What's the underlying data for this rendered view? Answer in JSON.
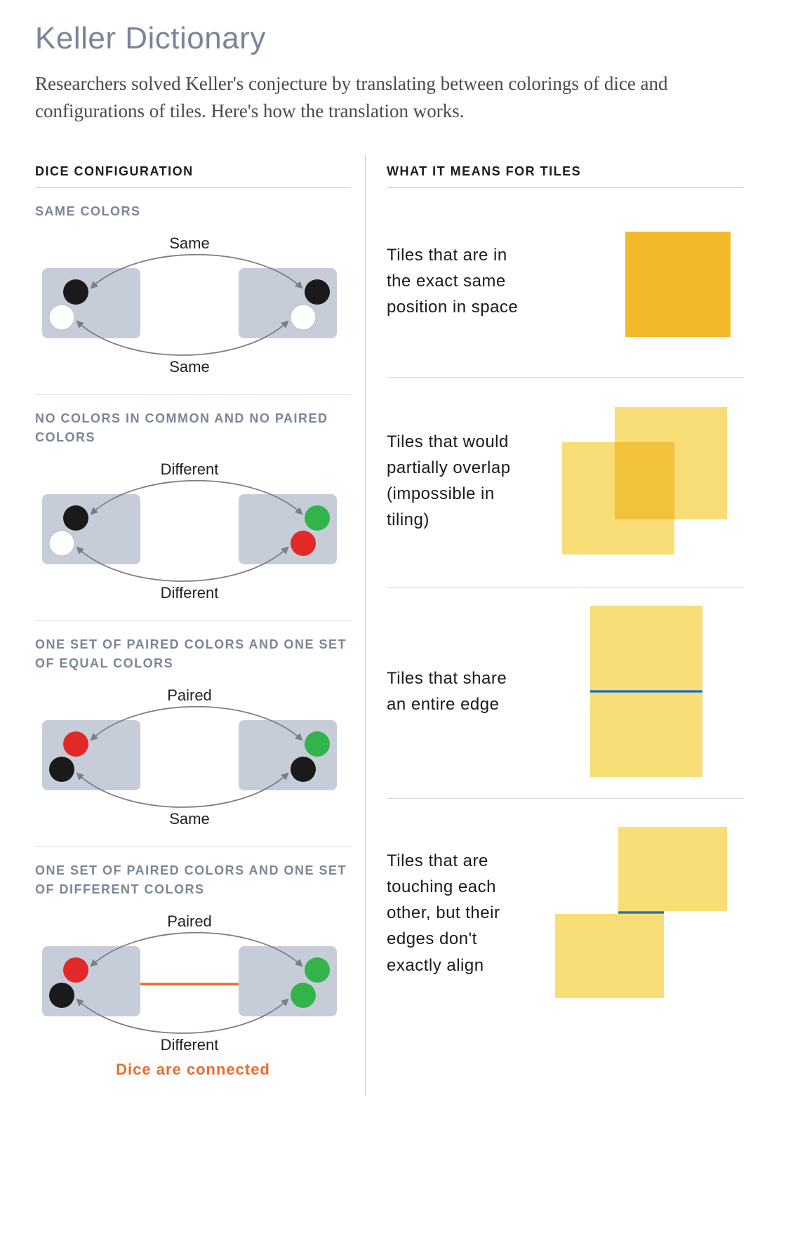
{
  "title": "Keller Dictionary",
  "intro": "Researchers solved Keller's conjecture by translating between colorings of dice and configurations of tiles. Here's how the translation works.",
  "headers": {
    "left": "DICE CONFIGURATION",
    "right": "WHAT IT MEANS FOR TILES"
  },
  "colors": {
    "dice_bg": "#c6cdd9",
    "black": "#1a1a1a",
    "white": "#ffffff",
    "green": "#32b44a",
    "red": "#e32828",
    "arrow": "#7a7f87",
    "tile_solid": "#f2b92a",
    "tile_trans": "#f9dd76",
    "tile_overlap": "#f2c23a",
    "edge_blue": "#2a6fa8",
    "orange": "#ee6a28",
    "label_gray": "#7a8599"
  },
  "rows": [
    {
      "label": "SAME COLORS",
      "top_rel": "Same",
      "bottom_rel": "Same",
      "left_dots": [
        "black",
        "white"
      ],
      "right_dots": [
        "black",
        "white"
      ],
      "connected": false,
      "tile_text": "Tiles that are in the exact same position in space",
      "tile_kind": "same"
    },
    {
      "label": "NO COLORS IN COMMON AND NO PAIRED COLORS",
      "top_rel": "Different",
      "bottom_rel": "Different",
      "left_dots": [
        "black",
        "white"
      ],
      "right_dots": [
        "green",
        "red"
      ],
      "connected": false,
      "tile_text": "Tiles that would partially overlap (impossible in tiling)",
      "tile_kind": "overlap"
    },
    {
      "label": "ONE SET OF PAIRED COLORS AND ONE SET OF EQUAL COLORS",
      "top_rel": "Paired",
      "bottom_rel": "Same",
      "left_dots": [
        "red",
        "black"
      ],
      "right_dots": [
        "green",
        "black"
      ],
      "connected": false,
      "tile_text": "Tiles that share an entire edge",
      "tile_kind": "edge"
    },
    {
      "label": "ONE SET OF PAIRED COLORS AND ONE SET OF DIFFERENT COLORS",
      "top_rel": "Paired",
      "bottom_rel": "Different",
      "left_dots": [
        "red",
        "black"
      ],
      "right_dots": [
        "green",
        "green"
      ],
      "connected": true,
      "tile_text": "Tiles that are touching each other, but their edges don't exactly align",
      "tile_kind": "offset"
    }
  ],
  "connected_text": "Dice are connected"
}
